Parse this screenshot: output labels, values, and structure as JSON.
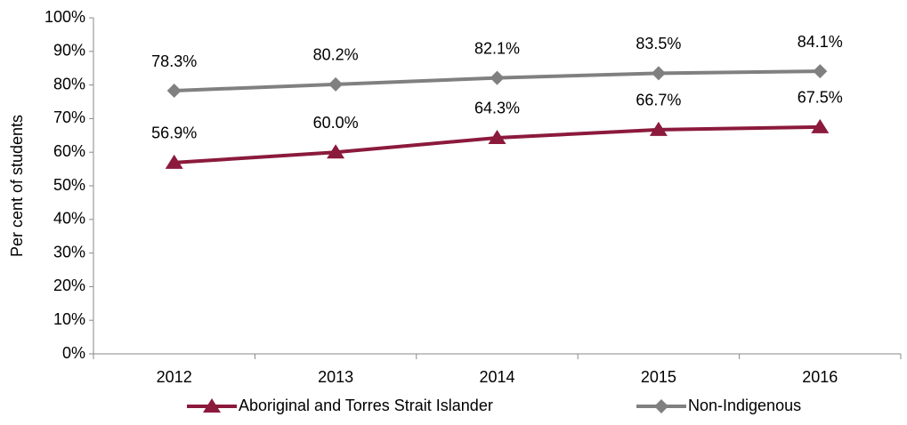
{
  "chart_data": {
    "type": "line",
    "y_label": "Per cent of students",
    "categories": [
      "2012",
      "2013",
      "2014",
      "2015",
      "2016"
    ],
    "series": [
      {
        "name": "Aboriginal and Torres Strait Islander",
        "color": "#8b1a3c",
        "marker": "triangle",
        "values": [
          56.9,
          60.0,
          64.3,
          66.7,
          67.5
        ],
        "value_labels": [
          "56.9%",
          "60.0%",
          "64.3%",
          "66.7%",
          "67.5%"
        ]
      },
      {
        "name": "Non-Indigenous",
        "color": "#808080",
        "marker": "diamond",
        "values": [
          78.3,
          80.2,
          82.1,
          83.5,
          84.1
        ],
        "value_labels": [
          "78.3%",
          "80.2%",
          "82.1%",
          "83.5%",
          "84.1%"
        ]
      }
    ],
    "ylim": [
      0,
      100
    ],
    "yticks": [
      {
        "value": 0,
        "label": "0%"
      },
      {
        "value": 10,
        "label": "10%"
      },
      {
        "value": 20,
        "label": "20%"
      },
      {
        "value": 30,
        "label": "30%"
      },
      {
        "value": 40,
        "label": "40%"
      },
      {
        "value": 50,
        "label": "50%"
      },
      {
        "value": 60,
        "label": "60%"
      },
      {
        "value": 70,
        "label": "70%"
      },
      {
        "value": 80,
        "label": "80%"
      },
      {
        "value": 90,
        "label": "90%"
      },
      {
        "value": 100,
        "label": "100%"
      }
    ],
    "grid": false,
    "legend": "bottom"
  }
}
